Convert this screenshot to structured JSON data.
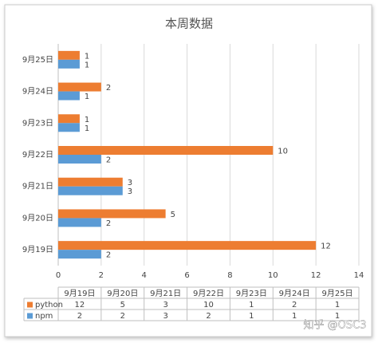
{
  "chart_data": {
    "type": "bar",
    "orientation": "horizontal",
    "title": "本周数据",
    "categories": [
      "9月19日",
      "9月20日",
      "9月21日",
      "9月22日",
      "9月23日",
      "9月24日",
      "9月25日"
    ],
    "series": [
      {
        "name": "python",
        "color": "#ed7d31",
        "values": [
          12,
          5,
          3,
          10,
          1,
          2,
          1
        ]
      },
      {
        "name": "npm",
        "color": "#5b9bd5",
        "values": [
          2,
          2,
          3,
          2,
          1,
          1,
          1
        ]
      }
    ],
    "xlim": [
      0,
      14
    ],
    "xticks": [
      0,
      2,
      4,
      6,
      8,
      10,
      12,
      14
    ],
    "grid": true,
    "data_table": true
  },
  "watermark": "知乎 @OSC3"
}
